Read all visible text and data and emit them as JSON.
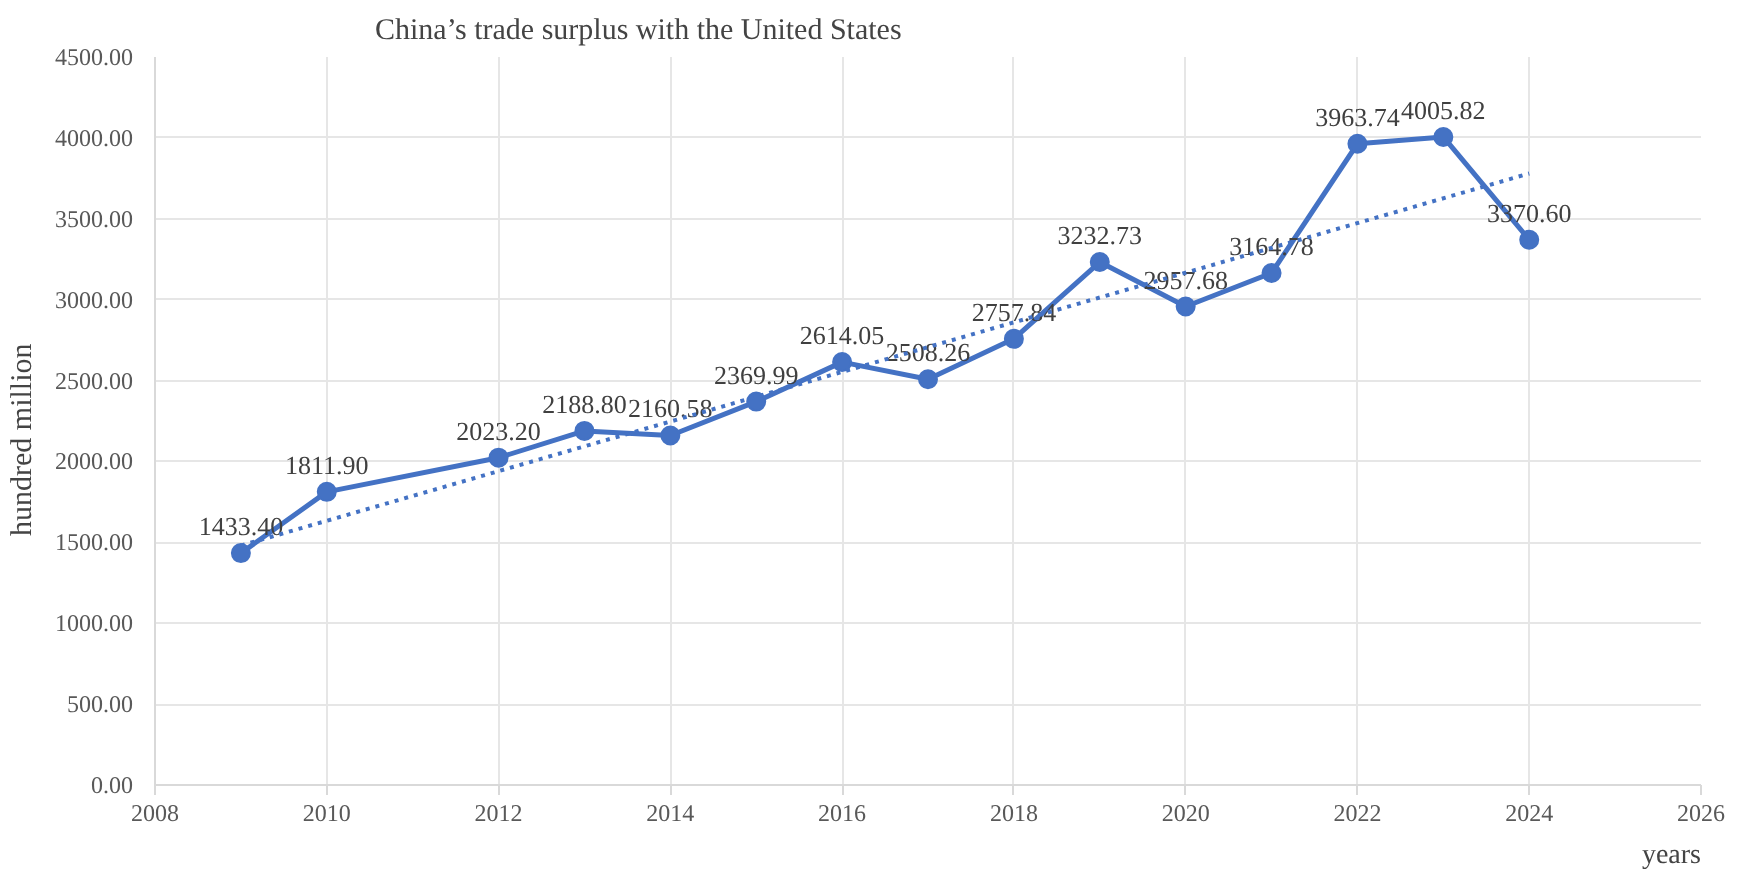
{
  "chart_data": {
    "type": "line",
    "title": "China’s trade surplus with the United States",
    "xlabel": "years",
    "ylabel": "hundred      million",
    "x": [
      2009,
      2010,
      2012,
      2013,
      2014,
      2015,
      2016,
      2017,
      2018,
      2019,
      2020,
      2021,
      2022,
      2023,
      2024
    ],
    "series": [
      {
        "color": "#4472c4",
        "marker": "circle",
        "line_style": "solid",
        "values": [
          1433.4,
          1811.9,
          2023.2,
          2188.8,
          2160.58,
          2369.99,
          2614.05,
          2508.26,
          2757.84,
          3232.73,
          2957.68,
          3164.78,
          3963.74,
          4005.82,
          3370.6
        ],
        "value_labels": [
          "1433.40",
          "1811.90",
          "2023.20",
          "2188.80",
          "2160.58",
          "2369.99",
          "2614.05",
          "2508.26",
          "2757.84",
          "3232.73",
          "2957.68",
          "3164.78",
          "3963.74",
          "4005.82",
          "3370.60"
        ]
      },
      {
        "type": "line",
        "color": "#4472c4",
        "marker": "none",
        "line_style": "dotted",
        "x": [
          2009,
          2024
        ],
        "values": [
          1480,
          3780
        ]
      }
    ],
    "xlim": [
      2008,
      2026
    ],
    "xticks": [
      2008,
      2010,
      2012,
      2014,
      2016,
      2018,
      2020,
      2022,
      2024,
      2026
    ],
    "ylim": [
      0,
      4500
    ],
    "yticks": [
      {
        "value": 0,
        "label": "0.00"
      },
      {
        "value": 500,
        "label": "500.00"
      },
      {
        "value": 1000,
        "label": "1000.00"
      },
      {
        "value": 1500,
        "label": "1500.00"
      },
      {
        "value": 2000,
        "label": "2000.00"
      },
      {
        "value": 2500,
        "label": "2500.00"
      },
      {
        "value": 3000,
        "label": "3000.00"
      },
      {
        "value": 3500,
        "label": "3500.00"
      },
      {
        "value": 4000,
        "label": "4000.00"
      },
      {
        "value": 4500,
        "label": "4500.00"
      }
    ],
    "grid": true
  }
}
